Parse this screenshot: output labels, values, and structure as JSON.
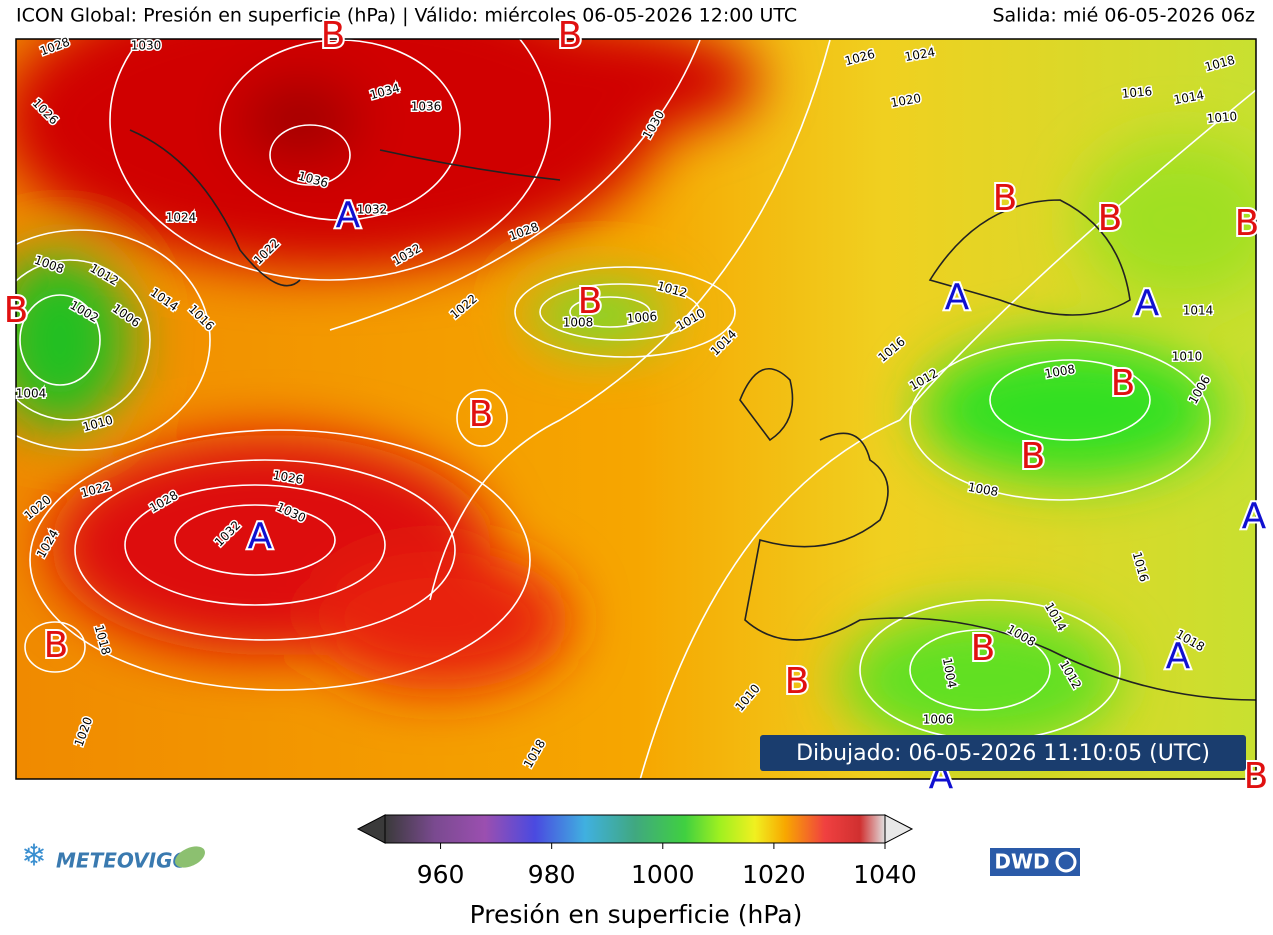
{
  "header": {
    "title": "ICON Global: Presión en superficie (hPa) | Válido: miércoles 06-05-2026 12:00 UTC",
    "run": "Salida: mié 06-05-2026 06z"
  },
  "map": {
    "centers": [
      "B",
      "B",
      "A",
      "B",
      "B",
      "B",
      "A",
      "B",
      "B",
      "B",
      "B",
      "A",
      "A",
      "B",
      "B",
      "A",
      "B",
      "B",
      "A",
      "A",
      "B"
    ],
    "isobar_labels": [
      "1028",
      "1030",
      "1026",
      "1034",
      "1036",
      "1036",
      "1024",
      "1032",
      "1022",
      "1032",
      "1028",
      "1030",
      "1026",
      "1024",
      "1020",
      "1018",
      "1016",
      "1014",
      "1010",
      "1008",
      "1012",
      "1002",
      "1006",
      "1014",
      "1016",
      "1022",
      "1012",
      "1008",
      "1006",
      "1010",
      "1014",
      "1016",
      "1012",
      "1014",
      "1010",
      "1008",
      "1006",
      "1004",
      "1010",
      "1022",
      "1020",
      "1024",
      "1026",
      "1028",
      "1030",
      "1032",
      "1018",
      "1020",
      "1018",
      "1008",
      "1016",
      "1014",
      "1008",
      "1018",
      "1012",
      "1004",
      "1006",
      "1010"
    ],
    "stamp": "Dibujado: 06-05-2026 11:10:05 (UTC)"
  },
  "colorbar": {
    "label": "Presión en superficie (hPa)",
    "lim": [
      950,
      1040
    ],
    "ticks": [
      960,
      980,
      1000,
      1020,
      1040
    ]
  },
  "logos": {
    "left": "METEOVIGO",
    "right": "DWD"
  }
}
